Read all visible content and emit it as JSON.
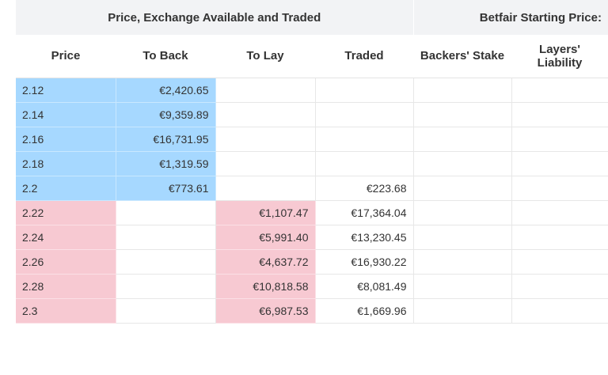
{
  "table": {
    "group_headers": {
      "exchange": "Price, Exchange Available and Traded",
      "bsp": "Betfair Starting Price:"
    },
    "columns": {
      "price": "Price",
      "to_back": "To Back",
      "to_lay": "To Lay",
      "traded": "Traded",
      "backers_stake": "Backers' Stake",
      "layers_liability_line1": "Layers'",
      "layers_liability_line2": "Liability"
    },
    "rows": [
      {
        "price": "2.12",
        "to_back": "€2,420.65",
        "to_lay": "",
        "traded": "",
        "backers_stake": "",
        "layers_liability": "",
        "side": "back"
      },
      {
        "price": "2.14",
        "to_back": "€9,359.89",
        "to_lay": "",
        "traded": "",
        "backers_stake": "",
        "layers_liability": "",
        "side": "back"
      },
      {
        "price": "2.16",
        "to_back": "€16,731.95",
        "to_lay": "",
        "traded": "",
        "backers_stake": "",
        "layers_liability": "",
        "side": "back"
      },
      {
        "price": "2.18",
        "to_back": "€1,319.59",
        "to_lay": "",
        "traded": "",
        "backers_stake": "",
        "layers_liability": "",
        "side": "back"
      },
      {
        "price": "2.2",
        "to_back": "€773.61",
        "to_lay": "",
        "traded": "€223.68",
        "backers_stake": "",
        "layers_liability": "",
        "side": "back"
      },
      {
        "price": "2.22",
        "to_back": "",
        "to_lay": "€1,107.47",
        "traded": "€17,364.04",
        "backers_stake": "",
        "layers_liability": "",
        "side": "lay"
      },
      {
        "price": "2.24",
        "to_back": "",
        "to_lay": "€5,991.40",
        "traded": "€13,230.45",
        "backers_stake": "",
        "layers_liability": "",
        "side": "lay"
      },
      {
        "price": "2.26",
        "to_back": "",
        "to_lay": "€4,637.72",
        "traded": "€16,930.22",
        "backers_stake": "",
        "layers_liability": "",
        "side": "lay"
      },
      {
        "price": "2.28",
        "to_back": "",
        "to_lay": "€10,818.58",
        "traded": "€8,081.49",
        "backers_stake": "",
        "layers_liability": "",
        "side": "lay"
      },
      {
        "price": "2.3",
        "to_back": "",
        "to_lay": "€6,987.53",
        "traded": "€1,669.96",
        "backers_stake": "",
        "layers_liability": "",
        "side": "lay"
      }
    ],
    "colors": {
      "back": "#a6d8ff",
      "lay": "#f7c9d2",
      "header_bg": "#f2f3f5"
    }
  }
}
